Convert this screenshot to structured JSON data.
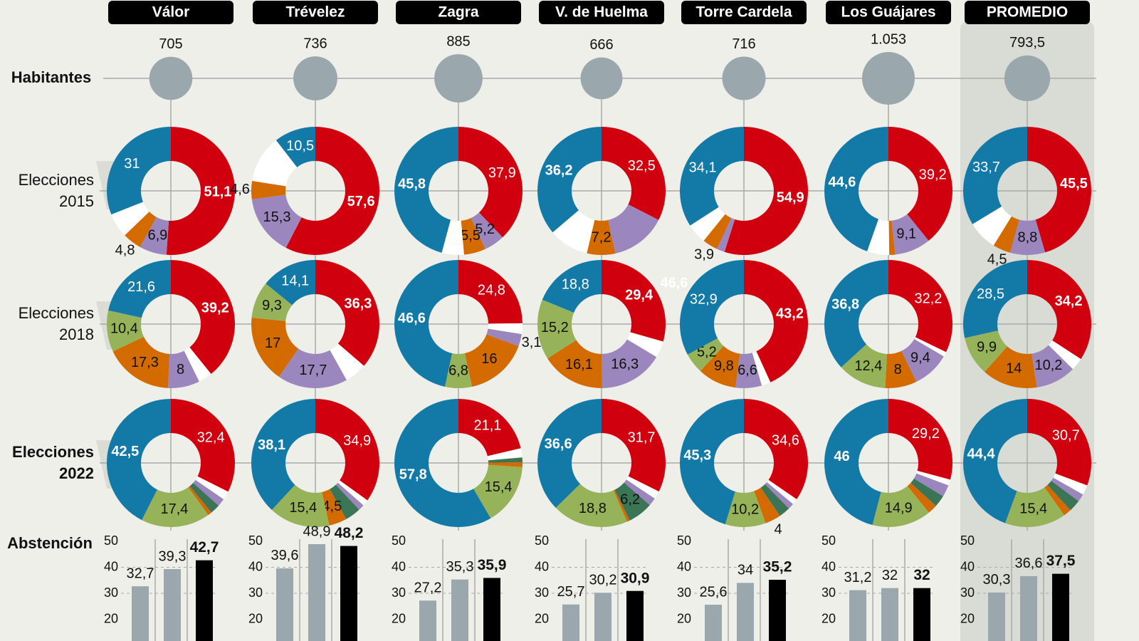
{
  "colors": {
    "PSOE": "#d0000f",
    "PP": "#137aa8",
    "Podemos": "#9b87bd",
    "Cs": "#d36b00",
    "Vox": "#96b35a",
    "Otros2": "#3b7556",
    "Otros": "#ffffff",
    "background": "#eeefe9",
    "promedio_band": "#d9dbd5",
    "bar_past": "#9aa8ad",
    "bar_current": "#000000",
    "population": "#9aa8ad"
  },
  "row_labels": {
    "habitantes": "Habitantes",
    "e2015": [
      "Elecciones",
      "2015"
    ],
    "e2018": [
      "Elecciones",
      "2018"
    ],
    "e2022": [
      "Elecciones",
      "2022"
    ],
    "abstencion": "Abstención"
  },
  "chart_data": {
    "type": "donut-grid",
    "elections": [
      "2015",
      "2018",
      "2022"
    ],
    "abstention_axis": {
      "ticks": [
        50,
        40,
        30,
        20
      ],
      "grid": true
    },
    "columns": [
      {
        "name": "Válor",
        "population": "705",
        "e2015": [
          [
            "PSOE",
            51.1,
            true
          ],
          [
            "Podemos",
            6.9,
            true
          ],
          [
            "Cs",
            4.8,
            true
          ],
          [
            "Otros",
            6.2,
            false
          ],
          [
            "PP",
            31,
            true
          ]
        ],
        "e2018": [
          [
            "PSOE",
            39.2,
            true
          ],
          [
            "Otros",
            3.5,
            false
          ],
          [
            "Podemos",
            8,
            true
          ],
          [
            "Cs",
            17.3,
            true
          ],
          [
            "Vox",
            10.4,
            true
          ],
          [
            "PP",
            21.6,
            true
          ]
        ],
        "e2022": [
          [
            "PSOE",
            32.4,
            true
          ],
          [
            "Otros",
            2.2,
            false
          ],
          [
            "Podemos",
            2,
            false
          ],
          [
            "Otros2",
            2.5,
            false
          ],
          [
            "Cs",
            1,
            false
          ],
          [
            "Vox",
            17.4,
            true
          ],
          [
            "PP",
            42.5,
            true
          ]
        ],
        "abstention": [
          32.7,
          39.3,
          42.7
        ]
      },
      {
        "name": "Trévelez",
        "population": "736",
        "e2015": [
          [
            "PSOE",
            57.6,
            true
          ],
          [
            "Podemos",
            15.3,
            true
          ],
          [
            "Cs",
            4.6,
            true
          ],
          [
            "Otros",
            12,
            false
          ],
          [
            "PP",
            10.5,
            true
          ]
        ],
        "e2018": [
          [
            "PSOE",
            36.3,
            true
          ],
          [
            "Otros",
            5.6,
            false
          ],
          [
            "Podemos",
            17.7,
            true
          ],
          [
            "Cs",
            17,
            true
          ],
          [
            "Vox",
            9.3,
            true
          ],
          [
            "PP",
            14.1,
            true
          ]
        ],
        "e2022": [
          [
            "PSOE",
            34.9,
            true
          ],
          [
            "Otros",
            1.6,
            false
          ],
          [
            "Podemos",
            1.5,
            false
          ],
          [
            "Otros2",
            4,
            false
          ],
          [
            "Cs",
            4.5,
            true
          ],
          [
            "Vox",
            15.4,
            true
          ],
          [
            "PP",
            38.1,
            true
          ]
        ],
        "abstention": [
          39.6,
          48.9,
          48.2
        ]
      },
      {
        "name": "Zagra",
        "population": "885",
        "e2015": [
          [
            "PSOE",
            37.9,
            true
          ],
          [
            "Podemos",
            5.2,
            true
          ],
          [
            "Cs",
            5.5,
            true
          ],
          [
            "Otros",
            5.6,
            false
          ],
          [
            "PP",
            45.8,
            true
          ]
        ],
        "e2018": [
          [
            "PSOE",
            24.8,
            true
          ],
          [
            "Otros",
            2.7,
            false
          ],
          [
            "Podemos",
            3.1,
            true
          ],
          [
            "Cs",
            16,
            true
          ],
          [
            "Vox",
            6.8,
            true
          ],
          [
            "PP",
            46.6,
            true
          ]
        ],
        "e2022": [
          [
            "PSOE",
            21.1,
            true
          ],
          [
            "Otros",
            2.3,
            false
          ],
          [
            "Otros2",
            1.2,
            false
          ],
          [
            "Cs",
            1.2,
            false
          ],
          [
            "Vox",
            15.4,
            true
          ],
          [
            "PP",
            57.8,
            true
          ]
        ],
        "abstention": [
          27.2,
          35.3,
          35.9
        ]
      },
      {
        "name": "V. de Huelma",
        "population": "666",
        "e2015": [
          [
            "PSOE",
            32.5,
            true
          ],
          [
            "Podemos",
            14,
            false
          ],
          [
            "Cs",
            7.2,
            true
          ],
          [
            "Otros",
            10.1,
            false
          ],
          [
            "PP",
            36.2,
            true
          ]
        ],
        "e2018": [
          [
            "PSOE",
            29.4,
            true
          ],
          [
            "Otros",
            4.2,
            false
          ],
          [
            "Podemos",
            16.3,
            true
          ],
          [
            "Cs",
            16.1,
            true
          ],
          [
            "Vox",
            15.2,
            true
          ],
          [
            "PP",
            18.8,
            true
          ]
        ],
        "e2022": [
          [
            "PSOE",
            31.7,
            true
          ],
          [
            "Otros",
            2,
            false
          ],
          [
            "Podemos",
            2,
            false
          ],
          [
            "Otros2",
            6.2,
            true
          ],
          [
            "Cs",
            0.7,
            false
          ],
          [
            "Vox",
            18.8,
            true
          ],
          [
            "PP",
            36.6,
            true
          ]
        ],
        "abstention": [
          25.7,
          30.2,
          30.9
        ],
        "stray_label": "46,6"
      },
      {
        "name": "Torre Cardela",
        "population": "716",
        "e2015": [
          [
            "PSOE",
            54.9,
            true
          ],
          [
            "Podemos",
            2,
            false
          ],
          [
            "Cs",
            3.9,
            true
          ],
          [
            "Otros",
            5.1,
            false
          ],
          [
            "PP",
            34.1,
            true
          ]
        ],
        "e2018": [
          [
            "PSOE",
            43.2,
            true
          ],
          [
            "Otros",
            2.3,
            false
          ],
          [
            "Podemos",
            6.6,
            true
          ],
          [
            "Cs",
            9.8,
            true
          ],
          [
            "Vox",
            5.2,
            true
          ],
          [
            "PP",
            32.9,
            true
          ]
        ],
        "e2022": [
          [
            "PSOE",
            34.6,
            true
          ],
          [
            "Otros",
            1.5,
            false
          ],
          [
            "Podemos",
            1.5,
            false
          ],
          [
            "Otros2",
            2.9,
            false
          ],
          [
            "Cs",
            4,
            true
          ],
          [
            "Vox",
            10.2,
            true
          ],
          [
            "PP",
            45.3,
            true
          ]
        ],
        "abstention": [
          25.6,
          34,
          35.2
        ]
      },
      {
        "name": "Los Guájares",
        "population": "1.053",
        "e2015": [
          [
            "PSOE",
            39.2,
            true
          ],
          [
            "Podemos",
            9.1,
            true
          ],
          [
            "Cs",
            1.5,
            false
          ],
          [
            "Otros",
            5.6,
            false
          ],
          [
            "PP",
            44.6,
            true
          ]
        ],
        "e2018": [
          [
            "PSOE",
            32.2,
            true
          ],
          [
            "Otros",
            1.2,
            false
          ],
          [
            "Podemos",
            9.4,
            true
          ],
          [
            "Cs",
            8,
            true
          ],
          [
            "Vox",
            12.4,
            true
          ],
          [
            "PP",
            36.8,
            true
          ]
        ],
        "e2022": [
          [
            "PSOE",
            29.2,
            true
          ],
          [
            "Otros",
            1.5,
            false
          ],
          [
            "Podemos",
            3,
            false
          ],
          [
            "Otros2",
            3,
            false
          ],
          [
            "Cs",
            2.4,
            false
          ],
          [
            "Vox",
            14.9,
            true
          ],
          [
            "PP",
            46,
            true
          ]
        ],
        "abstention": [
          31.2,
          32,
          32
        ]
      },
      {
        "name": "PROMEDIO",
        "population": "793,5",
        "e2015": [
          [
            "PSOE",
            45.5,
            true
          ],
          [
            "Podemos",
            8.8,
            true
          ],
          [
            "Cs",
            4.5,
            true
          ],
          [
            "Otros",
            7.5,
            false
          ],
          [
            "PP",
            33.7,
            true
          ]
        ],
        "e2018": [
          [
            "PSOE",
            34.2,
            true
          ],
          [
            "Otros",
            3.2,
            false
          ],
          [
            "Podemos",
            10.2,
            true
          ],
          [
            "Cs",
            14,
            true
          ],
          [
            "Vox",
            9.9,
            true
          ],
          [
            "PP",
            28.5,
            true
          ]
        ],
        "e2022": [
          [
            "PSOE",
            30.7,
            true
          ],
          [
            "Otros",
            2.5,
            false
          ],
          [
            "Podemos",
            2,
            false
          ],
          [
            "Otros2",
            3,
            false
          ],
          [
            "Cs",
            2,
            false
          ],
          [
            "Vox",
            15.4,
            true
          ],
          [
            "PP",
            44.4,
            true
          ]
        ],
        "abstention": [
          30.3,
          36.6,
          37.5
        ]
      }
    ]
  }
}
